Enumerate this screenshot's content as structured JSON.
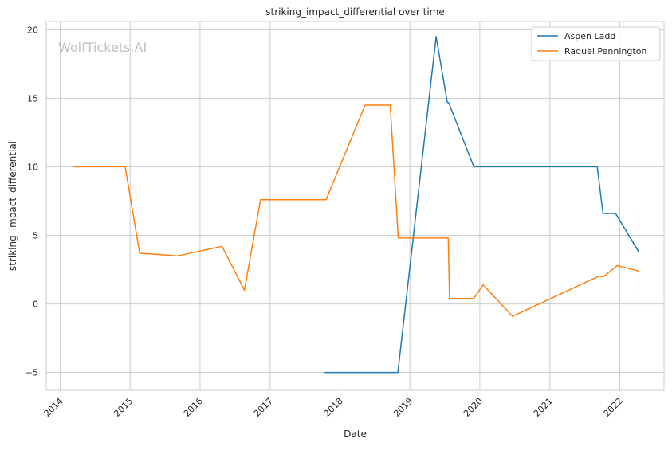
{
  "watermark": "WolfTickets.AI",
  "chart_data": {
    "type": "line",
    "title": "striking_impact_differential over time",
    "xlabel": "Date",
    "ylabel": "striking_impact_differential",
    "x_type": "date",
    "xlim": [
      "2013-10-20",
      "2022-08-20"
    ],
    "ylim": [
      -6.3,
      20.6
    ],
    "x_ticks": [
      "2014",
      "2015",
      "2016",
      "2017",
      "2018",
      "2019",
      "2020",
      "2021",
      "2022"
    ],
    "y_ticks": [
      -5,
      0,
      5,
      10,
      15,
      20
    ],
    "grid": true,
    "legend_position": "top-right",
    "series": [
      {
        "name": "Aspen Ladd",
        "color": "#1f77b4",
        "points": [
          {
            "x": "2017-10-15",
            "y": -5
          },
          {
            "x": "2018-10-30",
            "y": -5
          },
          {
            "x": "2019-05-18",
            "y": 19.5
          },
          {
            "x": "2019-07-15",
            "y": 14.7
          },
          {
            "x": "2019-07-22",
            "y": 14.7
          },
          {
            "x": "2019-12-01",
            "y": 10
          },
          {
            "x": "2021-09-05",
            "y": 10
          },
          {
            "x": "2021-10-05",
            "y": 6.6
          },
          {
            "x": "2021-12-10",
            "y": 6.6
          },
          {
            "x": "2022-04-10",
            "y": 3.8
          }
        ],
        "error_band": {
          "x": "2022-04-10",
          "low": 0.9,
          "high": 6.6
        }
      },
      {
        "name": "Raquel Pennington",
        "color": "#ff7f0e",
        "points": [
          {
            "x": "2014-03-15",
            "y": 10
          },
          {
            "x": "2014-12-06",
            "y": 10
          },
          {
            "x": "2015-02-20",
            "y": 3.7
          },
          {
            "x": "2015-09-05",
            "y": 3.5
          },
          {
            "x": "2016-04-25",
            "y": 4.2
          },
          {
            "x": "2016-08-20",
            "y": 1.0
          },
          {
            "x": "2016-11-12",
            "y": 7.6
          },
          {
            "x": "2017-10-20",
            "y": 7.6
          },
          {
            "x": "2018-05-12",
            "y": 14.5
          },
          {
            "x": "2018-09-20",
            "y": 14.5
          },
          {
            "x": "2018-11-01",
            "y": 4.8
          },
          {
            "x": "2019-07-20",
            "y": 4.8
          },
          {
            "x": "2019-07-27",
            "y": 0.4
          },
          {
            "x": "2019-12-01",
            "y": 0.4
          },
          {
            "x": "2020-01-18",
            "y": 1.4
          },
          {
            "x": "2020-06-20",
            "y": -0.9
          },
          {
            "x": "2021-09-10",
            "y": 2.0
          },
          {
            "x": "2021-10-10",
            "y": 2.0
          },
          {
            "x": "2021-12-18",
            "y": 2.8
          },
          {
            "x": "2022-04-10",
            "y": 2.4
          }
        ]
      }
    ]
  }
}
